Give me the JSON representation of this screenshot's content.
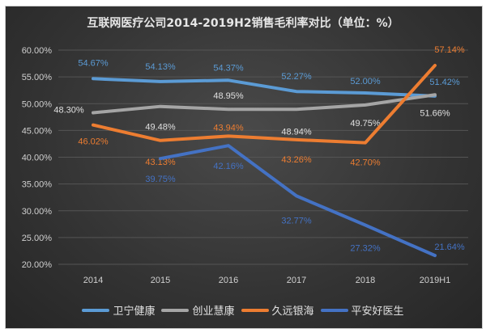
{
  "chart_data": {
    "type": "line",
    "title": "互联网医疗公司2014-2019H2销售毛利率对比（单位：%）",
    "categories": [
      "2014",
      "2015",
      "2016",
      "2017",
      "2018",
      "2019H1"
    ],
    "ylim": [
      20,
      60
    ],
    "yticks": [
      "20.00%",
      "25.00%",
      "30.00%",
      "35.00%",
      "40.00%",
      "45.00%",
      "50.00%",
      "55.00%",
      "60.00%"
    ],
    "grid": true,
    "legend_position": "bottom",
    "series": [
      {
        "name": "卫宁健康",
        "color": "#5B9BD5",
        "values": [
          54.67,
          54.13,
          54.37,
          52.27,
          52.0,
          51.42
        ],
        "labels": [
          "54.67%",
          "54.13%",
          "54.37%",
          "52.27%",
          "52.00%",
          "51.42%"
        ]
      },
      {
        "name": "创业慧康",
        "color": "#A5A5A5",
        "values": [
          48.3,
          49.48,
          48.95,
          48.94,
          49.75,
          51.66
        ],
        "labels": [
          "48.30%",
          "49.48%",
          "48.95%",
          "48.94%",
          "49.75%",
          "51.66%"
        ]
      },
      {
        "name": "久远银海",
        "color": "#ED7D31",
        "values": [
          46.02,
          43.13,
          43.94,
          43.26,
          42.7,
          57.14
        ],
        "labels": [
          "46.02%",
          "43.13%",
          "43.94%",
          "43.26%",
          "42.70%",
          "57.14%"
        ]
      },
      {
        "name": "平安好医生",
        "color": "#4472C4",
        "values": [
          null,
          39.75,
          42.16,
          32.77,
          27.32,
          21.64
        ],
        "labels": [
          null,
          "39.75%",
          "42.16%",
          "32.77%",
          "27.32%",
          "21.64%"
        ]
      }
    ]
  }
}
